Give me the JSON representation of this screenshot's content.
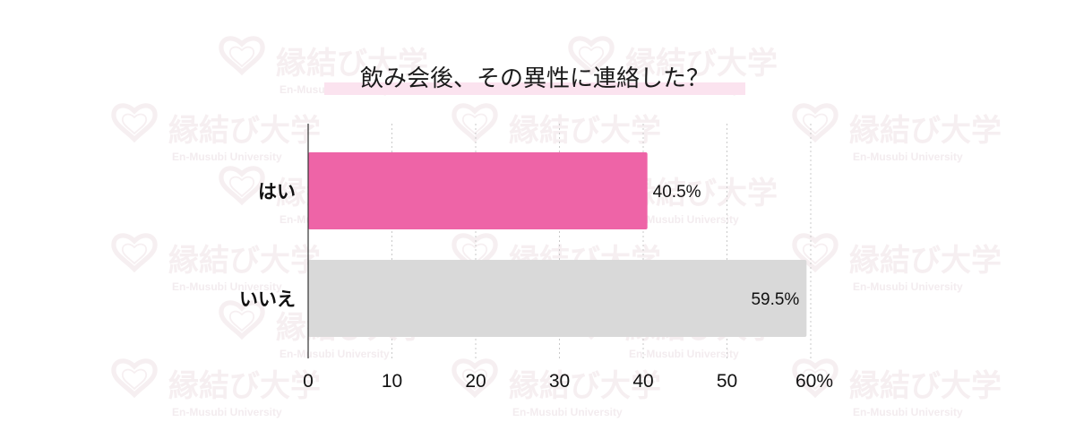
{
  "colors": {
    "primary_bar": "#ee64a7",
    "secondary_bar": "#d9d9d9",
    "title_highlight": "#fbe3ef",
    "watermark": "#f6eff1"
  },
  "watermark": {
    "logo_text": "縁結び大学",
    "sub_text": "En-Musubi University",
    "icon": "heart-icon"
  },
  "chart_data": {
    "type": "bar",
    "orientation": "horizontal",
    "title": "飲み会後、その異性に連絡した？",
    "categories": [
      "はい",
      "いいえ"
    ],
    "values": [
      40.5,
      59.5
    ],
    "value_labels": [
      "40.5%",
      "59.5%"
    ],
    "xlim": [
      0,
      60
    ],
    "xticks": [
      0,
      10,
      20,
      30,
      40,
      50,
      60
    ],
    "xtick_labels": [
      "0",
      "10",
      "20",
      "30",
      "40",
      "50",
      "60%"
    ],
    "grid": true,
    "legend": "none"
  }
}
